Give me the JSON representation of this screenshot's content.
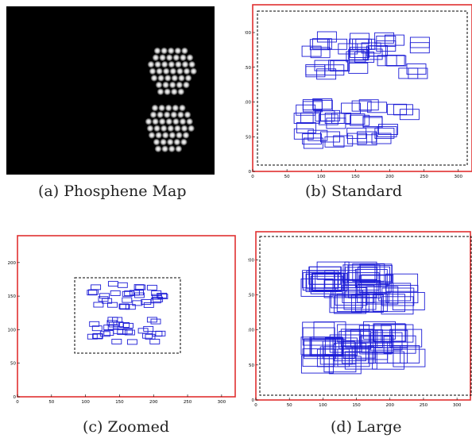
{
  "figures": [
    {
      "id": "a",
      "caption": "(a) Phosphene Map"
    },
    {
      "id": "b",
      "caption": "(b) Standard"
    },
    {
      "id": "c",
      "caption": "(c) Zoomed"
    },
    {
      "id": "d",
      "caption": "(d) Large"
    }
  ],
  "colors": {
    "frame": "#e03030",
    "boxes": "#1a1ad6",
    "dashed": "#000000",
    "dot": "#ffffff",
    "background": "#000000"
  },
  "panel_b": {
    "xticks": [
      "0",
      "50",
      "100",
      "150",
      "200",
      "250",
      "300"
    ],
    "yticks": [
      "0",
      "50",
      "100",
      "150",
      "200"
    ]
  },
  "panel_c": {
    "xticks": [
      "0",
      "50",
      "100",
      "150",
      "200",
      "250",
      "300"
    ],
    "yticks": [
      "0",
      "50",
      "100",
      "150",
      "200"
    ]
  },
  "panel_d": {
    "xticks": [
      "0",
      "50",
      "100",
      "150",
      "200",
      "250",
      "300"
    ],
    "yticks": [
      "0",
      "50",
      "100",
      "150",
      "200"
    ]
  }
}
